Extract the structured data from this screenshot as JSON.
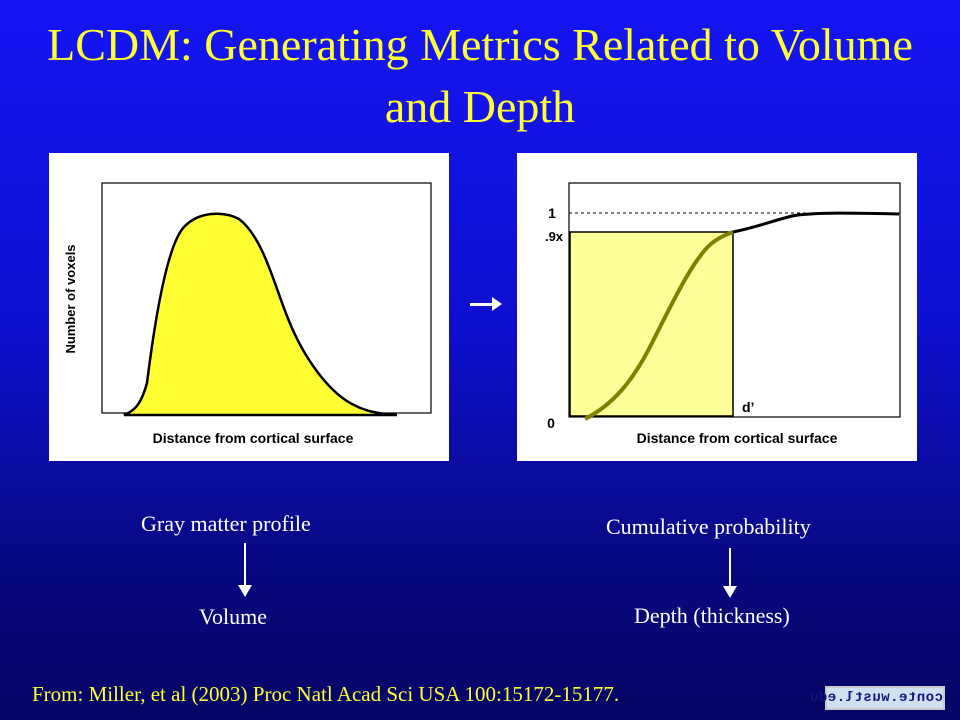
{
  "slide": {
    "title": "LCDM: Generating Metrics Related to Volume and Depth",
    "citation": "From: Miller, et al (2003) Proc Natl Acad Sci USA 100:15172-15177.",
    "logo_text": "conte.wustl.edu"
  },
  "left_panel": {
    "y_axis_label": "Number of voxels",
    "x_axis_label": "Distance from cortical surface",
    "fill_color": "#ffff33"
  },
  "right_panel": {
    "x_axis_label": "Distance from cortical surface",
    "tick_one": "1",
    "tick_point_nine": ".9x",
    "tick_zero": "0",
    "d_prime_label": "d’",
    "fill_color": "#ffff99",
    "curve_color": "#808000"
  },
  "captions": {
    "left_top": "Gray matter profile",
    "left_bottom": "Volume",
    "right_top": "Cumulative probability",
    "right_bottom": "Depth (thickness)"
  }
}
